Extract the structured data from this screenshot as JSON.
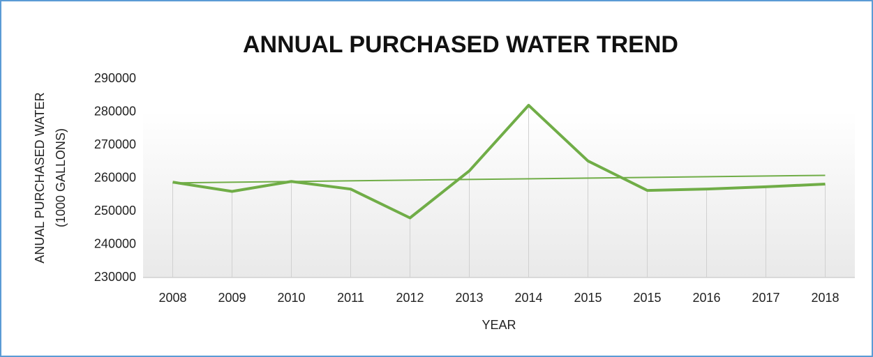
{
  "chart_data": {
    "type": "line",
    "title": "ANNUAL PURCHASED WATER TREND",
    "y_label": [
      "ANUAL PURCHASED WATER",
      "(1000 GALLONS)"
    ],
    "x_label": "YEAR",
    "categories": [
      "2008",
      "2009",
      "2010",
      "2011",
      "2012",
      "2013",
      "2014",
      "2015",
      "2015",
      "2016",
      "2017",
      "2018"
    ],
    "values": [
      258800,
      256000,
      259000,
      256700,
      248000,
      262200,
      282000,
      265200,
      256300,
      256700,
      257400,
      258200
    ],
    "color": "#70ad47",
    "trendline": true,
    "drop_lines": true,
    "ylim": [
      230000,
      290000
    ],
    "yticks": [
      230000,
      240000,
      250000,
      260000,
      270000,
      280000,
      290000
    ]
  }
}
